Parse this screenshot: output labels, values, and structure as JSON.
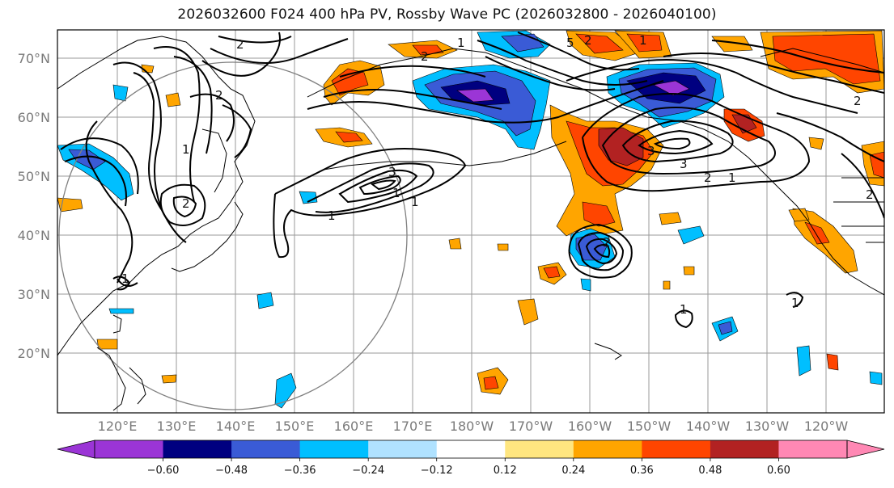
{
  "title": "2026032600 F024 400 hPa PV, Rossby Wave PC (2026032800 - 2026040100)",
  "lat_labels": [
    "70°N",
    "60°N",
    "50°N",
    "40°N",
    "30°N",
    "20°N"
  ],
  "lon_labels": [
    "120°E",
    "130°E",
    "140°E",
    "150°E",
    "160°E",
    "170°E",
    "180°W",
    "170°W",
    "160°W",
    "150°W",
    "140°W",
    "130°W",
    "120°W"
  ],
  "colorbar": {
    "ticks": [
      "−0.60",
      "−0.48",
      "−0.36",
      "−0.24",
      "−0.12",
      "0.12",
      "0.24",
      "0.36",
      "0.48",
      "0.60"
    ],
    "colors": [
      "#9b35d6",
      "#000080",
      "#3a5bd6",
      "#00bfff",
      "#b0e2ff",
      "#ffffff",
      "#ffe680",
      "#ffa500",
      "#ff4500",
      "#b22222",
      "#ff88b4"
    ]
  },
  "contour_labels": [
    "2",
    "2",
    "2",
    "1",
    "2",
    "5",
    "2",
    "2",
    "1",
    "1",
    "3",
    "1",
    "1",
    "1",
    "3",
    "3",
    "2",
    "1",
    "2",
    "1",
    "2",
    "1",
    "1"
  ],
  "colors": {
    "positive_strong": "#b22222",
    "positive": "#ff4500",
    "positive_weak": "#ffa500",
    "negative": "#00bfff",
    "negative_strong": "#000080"
  }
}
